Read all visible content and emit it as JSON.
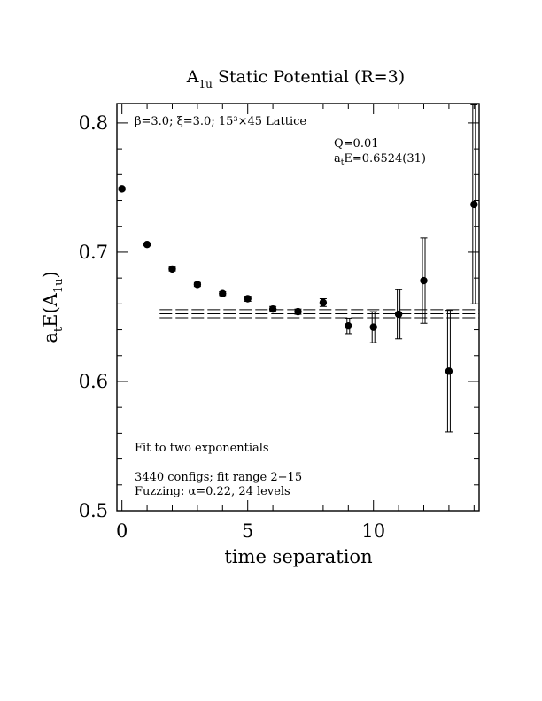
{
  "chart_data": {
    "type": "scatter",
    "title": "A",
    "title_sub": "1u",
    "title_rest": " Static Potential (R=3)",
    "xlabel": "time separation",
    "ylabel_main": "a",
    "ylabel_sub1": "t",
    "ylabel_mid": "E(A",
    "ylabel_sub2": "1u",
    "ylabel_end": ")",
    "xlim": [
      -0.2,
      14.2
    ],
    "ylim": [
      0.5,
      0.815
    ],
    "x_ticks": [
      0,
      5,
      10
    ],
    "x_tick_labels": [
      "0",
      "5",
      "10"
    ],
    "y_ticks": [
      0.5,
      0.6,
      0.7,
      0.8
    ],
    "y_tick_labels": [
      "0.5",
      "0.6",
      "0.7",
      "0.8"
    ],
    "x_minor_step": 1,
    "y_minor_step": 0.02,
    "grid": false,
    "series": [
      {
        "marker": "filled-circle",
        "x": [
          0,
          1,
          2,
          3,
          4,
          5,
          6,
          7,
          8,
          9,
          10,
          11,
          12,
          13,
          14
        ],
        "y": [
          0.749,
          0.706,
          0.687,
          0.675,
          0.668,
          0.664,
          0.656,
          0.654,
          0.661,
          0.643,
          0.642,
          0.652,
          0.678,
          0.608,
          0.737
        ],
        "err": [
          0.001,
          0.001,
          0.0015,
          0.0015,
          0.0015,
          0.002,
          0.002,
          0.002,
          0.003,
          0.006,
          0.012,
          0.019,
          0.033,
          0.047,
          0.077
        ]
      }
    ],
    "fit": {
      "x_range": [
        1.5,
        14
      ],
      "value": 0.6524,
      "error": 0.0031
    },
    "annotations": {
      "lattice": "β=3.0; ξ=3.0; 15³×45 Lattice",
      "q": "Q=0.01",
      "energy_main": "a",
      "energy_sub": "t",
      "energy_rest": "E=0.6524(31)",
      "fit_desc": "Fit to two exponentials",
      "configs": "3440 configs; fit range 2−15",
      "fuzzing": "Fuzzing: α=0.22, 24 levels"
    }
  }
}
